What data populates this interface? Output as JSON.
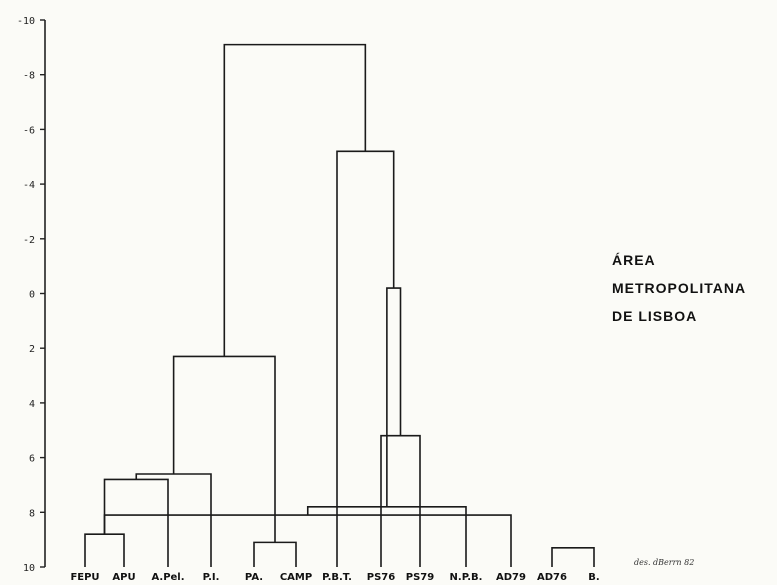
{
  "axis": {
    "ticks": [
      {
        "label": "-10",
        "value": -10
      },
      {
        "label": "-8",
        "value": -8
      },
      {
        "label": "-6",
        "value": -6
      },
      {
        "label": "-4",
        "value": -4
      },
      {
        "label": "-2",
        "value": -2
      },
      {
        "label": "0",
        "value": 0
      },
      {
        "label": "2",
        "value": 2
      },
      {
        "label": "4",
        "value": 4
      },
      {
        "label": "6",
        "value": 6
      },
      {
        "label": "8",
        "value": 8
      },
      {
        "label": "10",
        "value": 10
      }
    ],
    "range": [
      -10,
      10
    ]
  },
  "leaves": [
    "FEPU",
    "APU",
    "A.Pel.",
    "P.I.",
    "PA.",
    "CAMP",
    "P.B.T.",
    "PS76",
    "PS79",
    "N.P.B.",
    "AD79",
    "AD76",
    "B."
  ],
  "merges": [
    {
      "a": 0,
      "b": 1,
      "height": 8.8
    },
    {
      "a": 11,
      "b": 12,
      "height": 9.3
    },
    {
      "a": 4,
      "b": 5,
      "height": 9.1
    },
    {
      "a": 10,
      "b": 13,
      "height": 8.1
    },
    {
      "a": 9,
      "b": 16,
      "height": 7.8
    },
    {
      "a": 13,
      "b": 2,
      "height": 6.8
    },
    {
      "a": 18,
      "b": 3,
      "height": 6.6
    },
    {
      "a": 7,
      "b": 8,
      "height": 5.2
    },
    {
      "a": 19,
      "b": 15,
      "height": 2.3
    },
    {
      "a": 20,
      "b": 17,
      "height": -0.2
    },
    {
      "a": 22,
      "b": 6,
      "height": -5.2
    },
    {
      "a": 23,
      "b": 21,
      "height": -9.1
    }
  ],
  "region_label": {
    "line1": "ÁREA",
    "line2": "METROPOLITANA",
    "line3": "DE LISBOA"
  },
  "signature": "des. dBerrn 82"
}
